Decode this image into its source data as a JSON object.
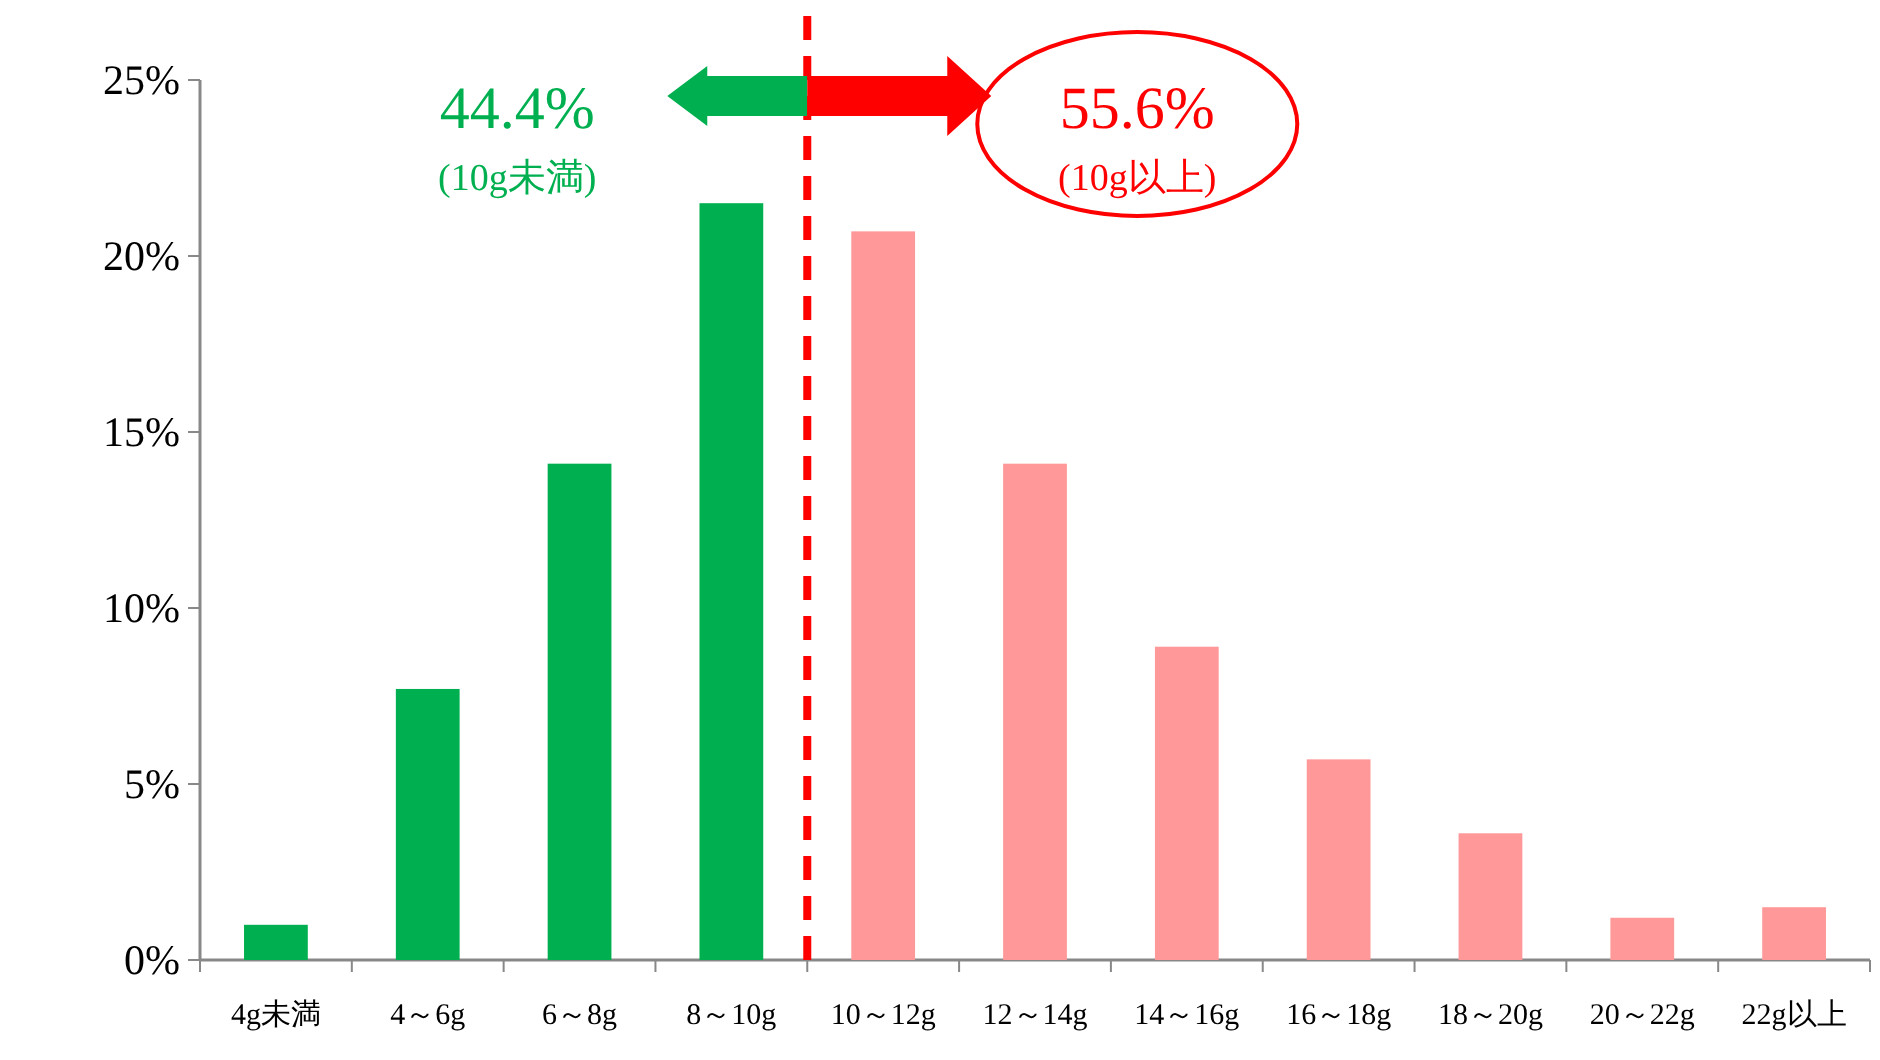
{
  "chart_data": {
    "type": "bar",
    "categories": [
      "4g未満",
      "4～6g",
      "6～8g",
      "8～10g",
      "10～12g",
      "12～14g",
      "14～16g",
      "16～18g",
      "18～20g",
      "20～22g",
      "22g以上"
    ],
    "values": [
      1.0,
      7.7,
      14.1,
      21.5,
      20.7,
      14.1,
      8.9,
      5.7,
      3.6,
      1.2,
      1.5
    ],
    "colors": [
      "#00b050",
      "#00b050",
      "#00b050",
      "#00b050",
      "#ff9999",
      "#ff9999",
      "#ff9999",
      "#ff9999",
      "#ff9999",
      "#ff9999",
      "#ff9999"
    ],
    "ylim": [
      0,
      25
    ],
    "yticks": [
      {
        "value": 0,
        "label": "0%"
      },
      {
        "value": 5,
        "label": "5%"
      },
      {
        "value": 10,
        "label": "10%"
      },
      {
        "value": 15,
        "label": "15%"
      },
      {
        "value": 20,
        "label": "20%"
      },
      {
        "value": 25,
        "label": "25%"
      }
    ],
    "ref_lines": [
      {
        "axis": "x",
        "value": "10～12g",
        "color": "#ff0000",
        "line_style": "dashed"
      }
    ],
    "annotations": [
      "44.4%",
      "(10g未満)",
      "55.6%",
      "(10g以上)"
    ],
    "grid": false
  }
}
